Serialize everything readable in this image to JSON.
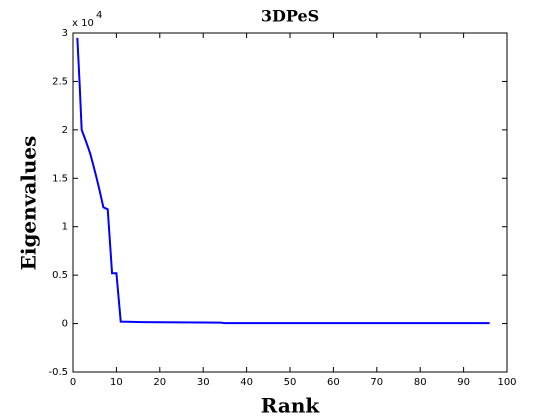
{
  "chart_data": {
    "type": "line",
    "title": "3DPeS",
    "x_label": "Rank",
    "y_label": "Eigenvalues",
    "y_exponent_prefix": "x 10",
    "y_exponent": "4",
    "x": [
      1,
      1.5,
      2,
      3,
      4,
      5,
      6,
      7,
      8,
      9,
      10,
      11,
      16,
      34,
      35,
      96
    ],
    "series": [
      {
        "name": "Eigenvalues",
        "color": "#0000ff",
        "values": [
          2.95,
          2.5,
          2.0,
          1.88,
          1.75,
          1.58,
          1.4,
          1.2,
          1.18,
          0.52,
          0.52,
          0.02,
          0.015,
          0.01,
          0.005,
          0.005
        ]
      }
    ],
    "xlim": [
      0,
      100
    ],
    "xticks": [
      0,
      10,
      20,
      30,
      40,
      50,
      60,
      70,
      80,
      90,
      100
    ],
    "ylim": [
      -0.5,
      3
    ],
    "yticks": [
      -0.5,
      0,
      0.5,
      1,
      1.5,
      2,
      2.5,
      3
    ],
    "grid": false
  }
}
